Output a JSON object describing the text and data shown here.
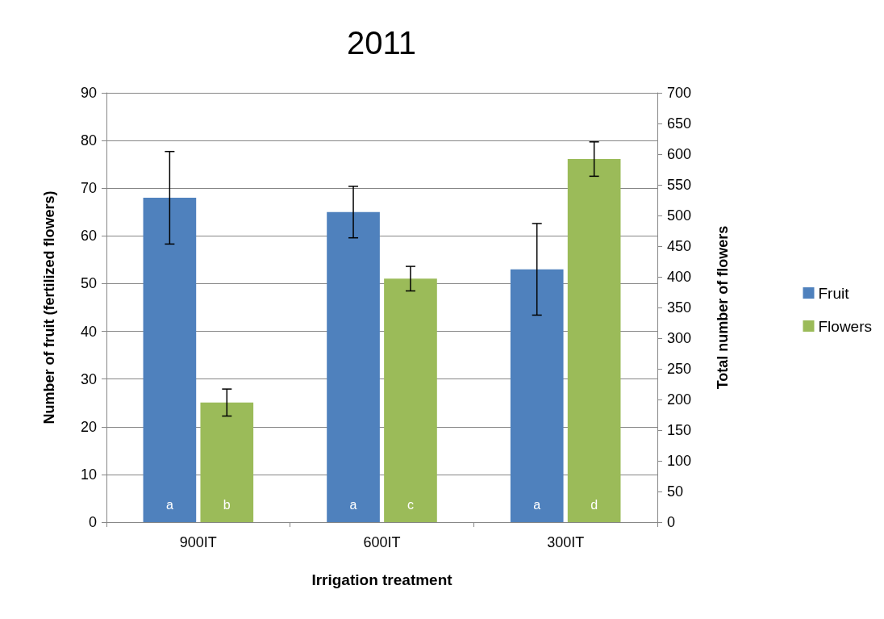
{
  "chart_data": {
    "type": "bar",
    "title": "2011",
    "xlabel": "Irrigation treatment",
    "ylabel": "Number of fruit (fertilized flowers)",
    "y2label": "Total number of flowers",
    "categories": [
      "900IT",
      "600IT",
      "300IT"
    ],
    "series": [
      {
        "name": "Fruit",
        "color": "#4f81bd",
        "values": [
          68,
          65,
          53
        ],
        "errors": [
          9.7,
          5.4,
          9.6
        ],
        "value_labels": [
          "a",
          "a",
          "a"
        ]
      },
      {
        "name": "Flowers",
        "color": "#9bbb59",
        "axis": "y2",
        "values": [
          195,
          397,
          592
        ],
        "errors": [
          22,
          20,
          28
        ],
        "value_labels": [
          "b",
          "c",
          "d"
        ]
      }
    ],
    "ylim": [
      0,
      90
    ],
    "yticks": [
      0,
      10,
      20,
      30,
      40,
      50,
      60,
      70,
      80,
      90
    ],
    "y2lim": [
      0,
      700
    ],
    "y2ticks": [
      0,
      50,
      100,
      150,
      200,
      250,
      300,
      350,
      400,
      450,
      500,
      550,
      600,
      650,
      700
    ],
    "grid": "y",
    "legend": "right"
  }
}
